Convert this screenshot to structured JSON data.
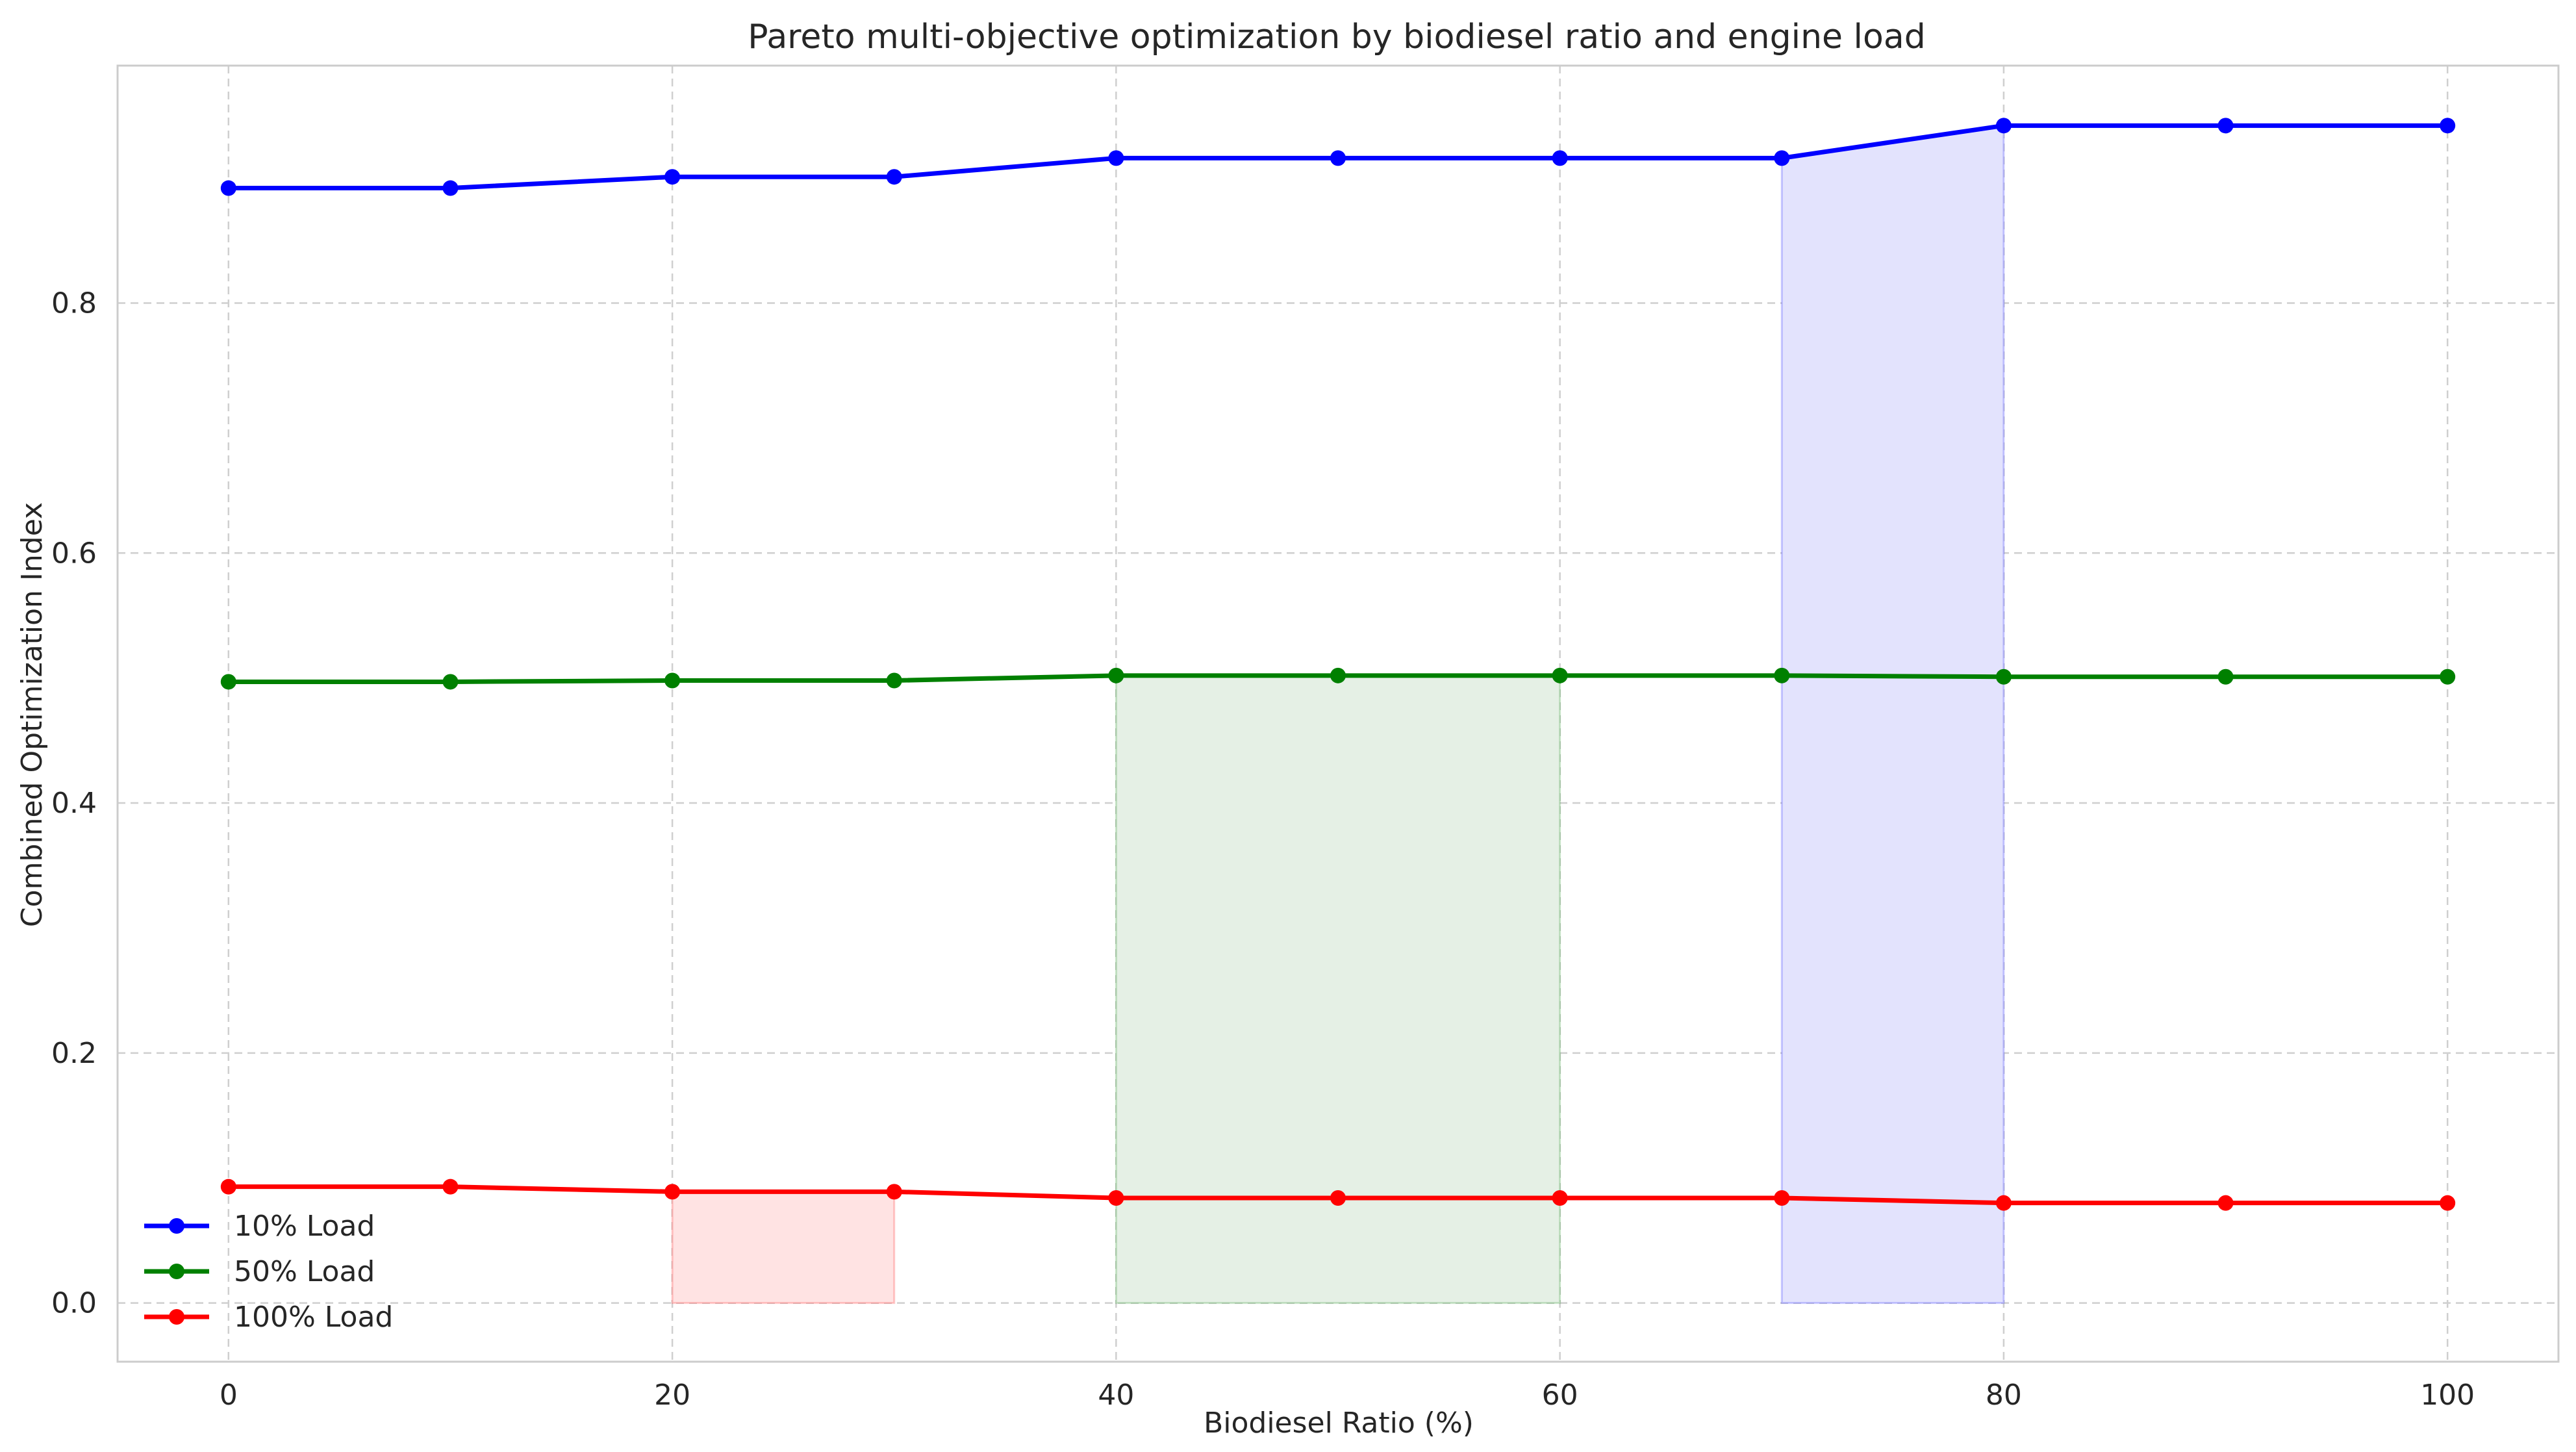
{
  "chart_data": {
    "type": "line",
    "title": "Pareto multi-objective optimization by biodiesel ratio and engine load",
    "xlabel": "Biodiesel Ratio (%)",
    "ylabel": "Combined Optimization Index",
    "xlim": [
      -5,
      105
    ],
    "ylim": [
      -0.047,
      0.99
    ],
    "xticks": [
      0,
      20,
      40,
      60,
      80,
      100
    ],
    "yticks": [
      0.0,
      0.2,
      0.4,
      0.6,
      0.8
    ],
    "ytick_labels": [
      "0.0",
      "0.2",
      "0.4",
      "0.6",
      "0.8"
    ],
    "grid": true,
    "legend_position": "lower-left",
    "x": [
      0,
      10,
      20,
      30,
      40,
      50,
      60,
      70,
      80,
      90,
      100
    ],
    "series": [
      {
        "name": "10% Load",
        "color": "#0000ff",
        "values": [
          0.892,
          0.892,
          0.901,
          0.901,
          0.916,
          0.916,
          0.916,
          0.916,
          0.942,
          0.942,
          0.942
        ],
        "highlight": {
          "x_start": 70,
          "x_end": 80,
          "fill_color": "#e3e3fd"
        }
      },
      {
        "name": "50% Load",
        "color": "#008000",
        "values": [
          0.497,
          0.497,
          0.498,
          0.498,
          0.502,
          0.502,
          0.502,
          0.502,
          0.501,
          0.501,
          0.501
        ],
        "highlight": {
          "x_start": 40,
          "x_end": 60,
          "fill_color": "#e5f0e5"
        }
      },
      {
        "name": "100% Load",
        "color": "#ff0000",
        "values": [
          0.093,
          0.093,
          0.089,
          0.089,
          0.084,
          0.084,
          0.084,
          0.084,
          0.08,
          0.08,
          0.08
        ],
        "highlight": {
          "x_start": 20,
          "x_end": 30,
          "fill_color": "#ffe3e3"
        }
      }
    ]
  }
}
